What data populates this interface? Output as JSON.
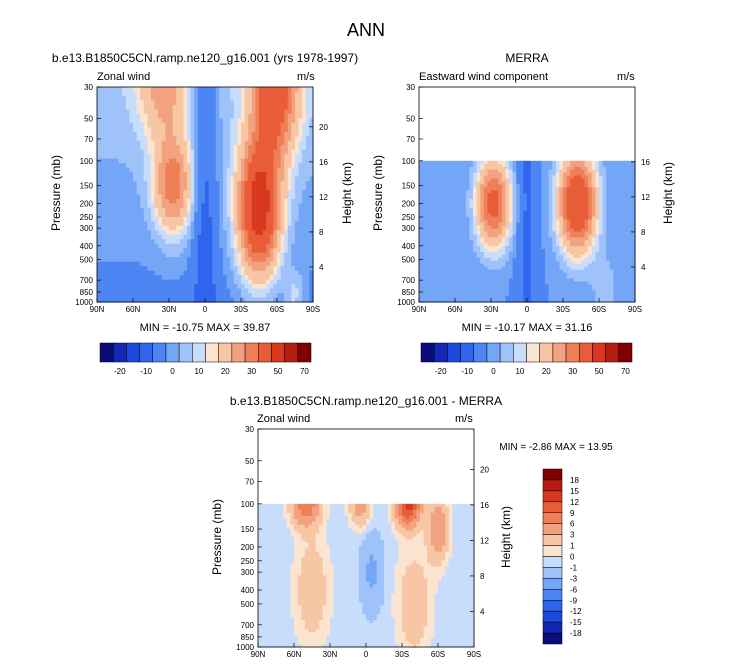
{
  "figure_title": "ANN",
  "chart_data": [
    {
      "type": "heatmap",
      "id": "model",
      "title": "b.e13.B1850C5CN.ramp.ne120_g16.001 (yrs 1978-1997)",
      "left_label": "Zonal wind",
      "units": "m/s",
      "ylabel": "Pressure (mb)",
      "y2label": "Height (km)",
      "xticks": [
        "90N",
        "60N",
        "30N",
        "0",
        "30S",
        "60S",
        "90S"
      ],
      "yticks": [
        "30",
        "50",
        "70",
        "100",
        "150",
        "200",
        "250",
        "300",
        "400",
        "500",
        "700",
        "850",
        "1000"
      ],
      "y2ticks": [
        "20",
        "16",
        "12",
        "8",
        "4"
      ],
      "ylim": [
        1000,
        30
      ],
      "data_top": 30,
      "min_max": "MIN = -10.75   MAX = 39.87",
      "jets": [
        {
          "lat": -45,
          "p": 200,
          "peak": 40
        },
        {
          "lat": 27,
          "p": 150,
          "peak": 22
        },
        {
          "lat": 35,
          "p": 30,
          "peak": 15
        },
        {
          "lat": -55,
          "p": 30,
          "peak": 40
        }
      ],
      "features": [
        "easterlies at equator",
        "westerly jets near 30N and 45S"
      ]
    },
    {
      "type": "heatmap",
      "id": "obs",
      "title": "MERRA",
      "left_label": "Eastward wind component",
      "units": "m/s",
      "ylabel": "Pressure (mb)",
      "y2label": "Height (km)",
      "xticks": [
        "90N",
        "60N",
        "30N",
        "0",
        "30S",
        "60S",
        "90S"
      ],
      "yticks": [
        "30",
        "50",
        "70",
        "100",
        "150",
        "200",
        "250",
        "300",
        "400",
        "500",
        "700",
        "850",
        "1000"
      ],
      "y2ticks": [
        "16",
        "12",
        "8",
        "4"
      ],
      "ylim": [
        1000,
        30
      ],
      "data_top": 100,
      "min_max": "MIN = -10.17   MAX = 31.16",
      "jets": [
        {
          "lat": 28,
          "p": 200,
          "peak": 24
        },
        {
          "lat": -42,
          "p": 200,
          "peak": 31
        }
      ]
    },
    {
      "type": "heatmap",
      "id": "diff",
      "title": "b.e13.B1850C5CN.ramp.ne120_g16.001 - MERRA",
      "left_label": "Zonal wind",
      "units": "m/s",
      "ylabel": "Pressure (mb)",
      "y2label": "Height (km)",
      "xticks": [
        "90N",
        "60N",
        "30N",
        "0",
        "30S",
        "60S",
        "90S"
      ],
      "yticks": [
        "30",
        "50",
        "70",
        "100",
        "150",
        "200",
        "250",
        "300",
        "400",
        "500",
        "700",
        "850",
        "1000"
      ],
      "y2ticks": [
        "20",
        "16",
        "12",
        "8",
        "4"
      ],
      "ylim": [
        1000,
        30
      ],
      "data_top": 100,
      "min_max": "MIN =  -2.86   MAX =  13.95",
      "peaks": [
        {
          "lat": 50,
          "p": 100,
          "value": 9
        },
        {
          "lat": 5,
          "p": 100,
          "value": 5
        },
        {
          "lat": -35,
          "p": 100,
          "value": 14
        },
        {
          "lat": -60,
          "p": 150,
          "value": 6
        }
      ]
    }
  ],
  "colorbar_abs": {
    "labels": [
      "-20",
      "-10",
      "0",
      "10",
      "20",
      "30",
      "50",
      "70"
    ],
    "colors": [
      "#0b0b7a",
      "#1426b4",
      "#1e48dd",
      "#2f64ee",
      "#4d86f4",
      "#74a6f7",
      "#9fc2fa",
      "#c8dcfb",
      "#fbe4d0",
      "#f6c6a5",
      "#f2a27e",
      "#ee7f57",
      "#e85d38",
      "#d9381e",
      "#b51c12",
      "#800000"
    ]
  },
  "colorbar_diff": {
    "labels": [
      "18",
      "15",
      "12",
      "9",
      "6",
      "3",
      "1",
      "0",
      "-1",
      "-3",
      "-6",
      "-9",
      "-12",
      "-15",
      "-18"
    ],
    "colors": [
      "#800000",
      "#b51c12",
      "#d9381e",
      "#e85d38",
      "#ee7f57",
      "#f2a27e",
      "#f6c6a5",
      "#fbe4d0",
      "#c8dcfb",
      "#9fc2fa",
      "#74a6f7",
      "#4d86f4",
      "#2f64ee",
      "#1e48dd",
      "#1426b4",
      "#0b0b7a"
    ]
  }
}
